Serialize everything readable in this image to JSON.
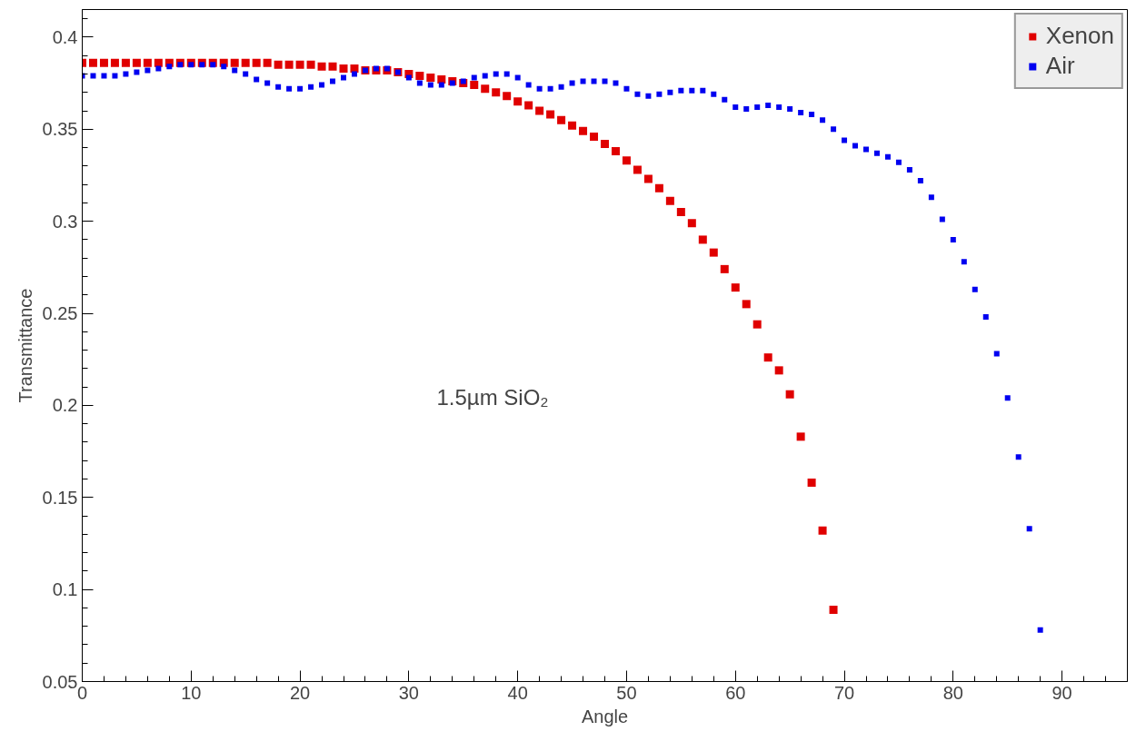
{
  "chart_data": {
    "type": "scatter",
    "xlabel": "Angle",
    "ylabel": "Transmittance",
    "xlim": [
      0,
      96
    ],
    "ylim": [
      0.05,
      0.415
    ],
    "xticks": [
      0,
      10,
      20,
      30,
      40,
      50,
      60,
      70,
      80,
      90
    ],
    "yticks": [
      0.05,
      0.1,
      0.15,
      0.2,
      0.25,
      0.3,
      0.35,
      0.4
    ],
    "grid": false,
    "legend": "top right",
    "marker": "square",
    "annotations": [
      "1.5µm SiO₂"
    ],
    "series": [
      {
        "name": "Xenon",
        "color": "#e00000",
        "x": [
          0,
          1,
          2,
          3,
          4,
          5,
          6,
          7,
          8,
          9,
          10,
          11,
          12,
          13,
          14,
          15,
          16,
          17,
          18,
          19,
          20,
          21,
          22,
          23,
          24,
          25,
          26,
          27,
          28,
          29,
          30,
          31,
          32,
          33,
          34,
          35,
          36,
          37,
          38,
          39,
          40,
          41,
          42,
          43,
          44,
          45,
          46,
          47,
          48,
          49,
          50,
          51,
          52,
          53,
          54,
          55,
          56,
          57,
          58,
          59,
          60,
          61,
          62,
          63,
          64,
          65,
          66,
          67,
          68,
          69
        ],
        "values": [
          0.386,
          0.386,
          0.386,
          0.386,
          0.386,
          0.386,
          0.386,
          0.386,
          0.386,
          0.386,
          0.386,
          0.386,
          0.386,
          0.386,
          0.386,
          0.386,
          0.386,
          0.386,
          0.385,
          0.385,
          0.385,
          0.385,
          0.384,
          0.384,
          0.383,
          0.383,
          0.382,
          0.382,
          0.382,
          0.381,
          0.38,
          0.379,
          0.378,
          0.377,
          0.376,
          0.375,
          0.374,
          0.372,
          0.37,
          0.368,
          0.365,
          0.363,
          0.36,
          0.358,
          0.355,
          0.352,
          0.349,
          0.346,
          0.342,
          0.338,
          0.333,
          0.328,
          0.323,
          0.318,
          0.311,
          0.305,
          0.299,
          0.29,
          0.283,
          0.274,
          0.264,
          0.255,
          0.244,
          0.226,
          0.219,
          0.206,
          0.183,
          0.158,
          0.132,
          0.089
        ]
      },
      {
        "name": "Air",
        "color": "#0000f0",
        "x": [
          0,
          1,
          2,
          3,
          4,
          5,
          6,
          7,
          8,
          9,
          10,
          11,
          12,
          13,
          14,
          15,
          16,
          17,
          18,
          19,
          20,
          21,
          22,
          23,
          24,
          25,
          26,
          27,
          28,
          29,
          30,
          31,
          32,
          33,
          34,
          35,
          36,
          37,
          38,
          39,
          40,
          41,
          42,
          43,
          44,
          45,
          46,
          47,
          48,
          49,
          50,
          51,
          52,
          53,
          54,
          55,
          56,
          57,
          58,
          59,
          60,
          61,
          62,
          63,
          64,
          65,
          66,
          67,
          68,
          69,
          70,
          71,
          72,
          73,
          74,
          75,
          76,
          77,
          78,
          79,
          80,
          81,
          82,
          83,
          84,
          85,
          86,
          87,
          88
        ],
        "values": [
          0.379,
          0.379,
          0.379,
          0.379,
          0.38,
          0.381,
          0.382,
          0.383,
          0.384,
          0.385,
          0.385,
          0.385,
          0.385,
          0.384,
          0.382,
          0.38,
          0.377,
          0.375,
          0.373,
          0.372,
          0.372,
          0.373,
          0.374,
          0.376,
          0.378,
          0.38,
          0.382,
          0.383,
          0.383,
          0.381,
          0.378,
          0.375,
          0.374,
          0.374,
          0.375,
          0.376,
          0.378,
          0.379,
          0.38,
          0.38,
          0.378,
          0.374,
          0.372,
          0.372,
          0.373,
          0.375,
          0.376,
          0.376,
          0.376,
          0.375,
          0.372,
          0.369,
          0.368,
          0.369,
          0.37,
          0.371,
          0.371,
          0.371,
          0.369,
          0.366,
          0.362,
          0.361,
          0.362,
          0.363,
          0.362,
          0.361,
          0.359,
          0.358,
          0.355,
          0.35,
          0.344,
          0.341,
          0.339,
          0.337,
          0.335,
          0.332,
          0.328,
          0.322,
          0.313,
          0.301,
          0.29,
          0.278,
          0.263,
          0.248,
          0.228,
          0.204,
          0.172,
          0.133,
          0.078
        ]
      }
    ]
  }
}
